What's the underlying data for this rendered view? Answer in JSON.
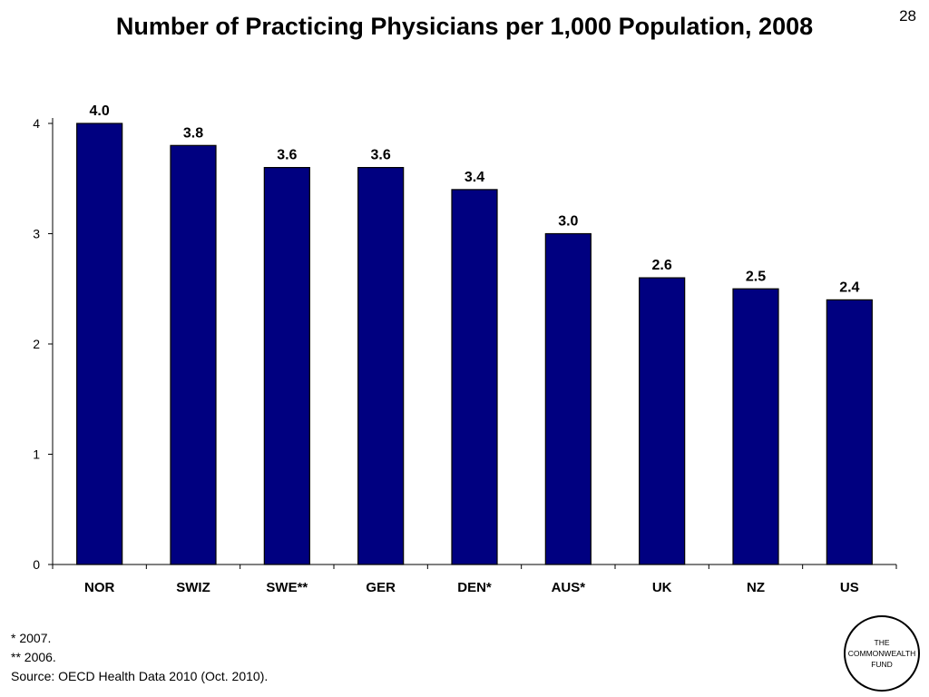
{
  "slide_number": "28",
  "chart_data": {
    "type": "bar",
    "title": "Number of Practicing Physicians per 1,000 Population, 2008",
    "categories": [
      "NOR",
      "SWIZ",
      "SWE**",
      "GER",
      "DEN*",
      "AUS*",
      "UK",
      "NZ",
      "US"
    ],
    "values": [
      4.0,
      3.8,
      3.6,
      3.6,
      3.4,
      3.0,
      2.6,
      2.5,
      2.4
    ],
    "value_labels": [
      "4.0",
      "3.8",
      "3.6",
      "3.6",
      "3.4",
      "3.0",
      "2.6",
      "2.5",
      "2.4"
    ],
    "xlabel": "",
    "ylabel": "",
    "ylim": [
      0,
      4
    ],
    "yticks": [
      0,
      1,
      2,
      3,
      4
    ],
    "grid": false,
    "bar_color": "#000080"
  },
  "footnotes": [
    "* 2007.",
    "** 2006.",
    "Source: OECD Health Data 2010 (Oct. 2010)."
  ],
  "logo": {
    "line1": "THE",
    "line2": "COMMONWEALTH",
    "line3": "FUND"
  }
}
